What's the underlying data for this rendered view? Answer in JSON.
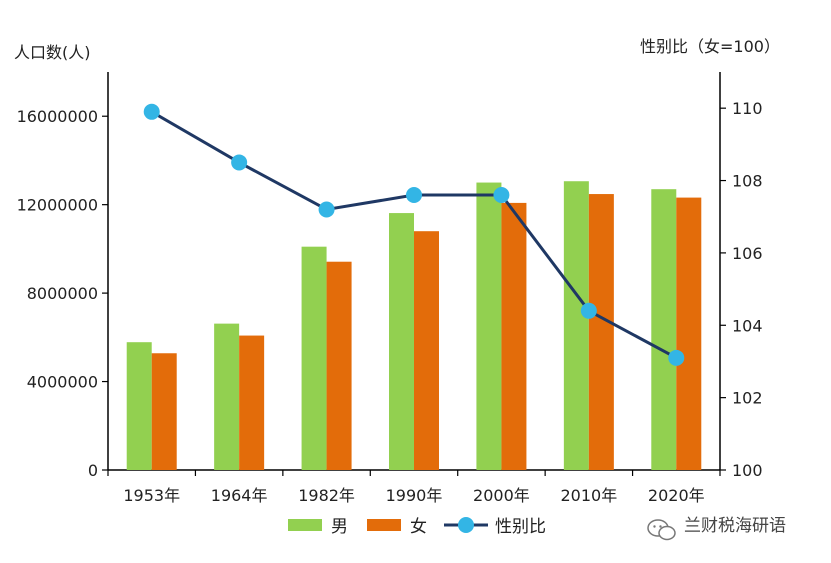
{
  "chart_data": {
    "type": "bar",
    "categories": [
      "1953年",
      "1964年",
      "1982年",
      "1990年",
      "2000年",
      "2010年",
      "2020年"
    ],
    "series": [
      {
        "name": "男",
        "chart_type": "bar",
        "axis": "left",
        "color": "#92d050",
        "values": [
          5780000,
          6620000,
          10100000,
          11620000,
          13000000,
          13060000,
          12700000
        ]
      },
      {
        "name": "女",
        "chart_type": "bar",
        "axis": "left",
        "color": "#e36c0a",
        "values": [
          5280000,
          6080000,
          9420000,
          10800000,
          12080000,
          12480000,
          12320000
        ]
      },
      {
        "name": "性别比",
        "chart_type": "line",
        "axis": "right",
        "color": "#1f3864",
        "marker_color": "#33b5e5",
        "values": [
          109.9,
          108.5,
          107.2,
          107.6,
          107.6,
          104.4,
          103.1
        ]
      }
    ],
    "y_left": {
      "label": "人口数(人)",
      "ylim": [
        0,
        18000000
      ],
      "ticks": [
        0,
        4000000,
        8000000,
        12000000,
        16000000
      ],
      "tick_labels": [
        "0",
        "4000000",
        "8000000",
        "12000000",
        "16000000"
      ]
    },
    "y_right": {
      "label": "性别比（女=100）",
      "ylim": [
        100,
        111
      ],
      "ticks": [
        100,
        102,
        104,
        106,
        108,
        110
      ],
      "tick_labels": [
        "100",
        "102",
        "104",
        "106",
        "108",
        "110"
      ]
    },
    "grid": false,
    "legend_position": "bottom"
  },
  "watermark": {
    "text": "兰财税海研语"
  }
}
